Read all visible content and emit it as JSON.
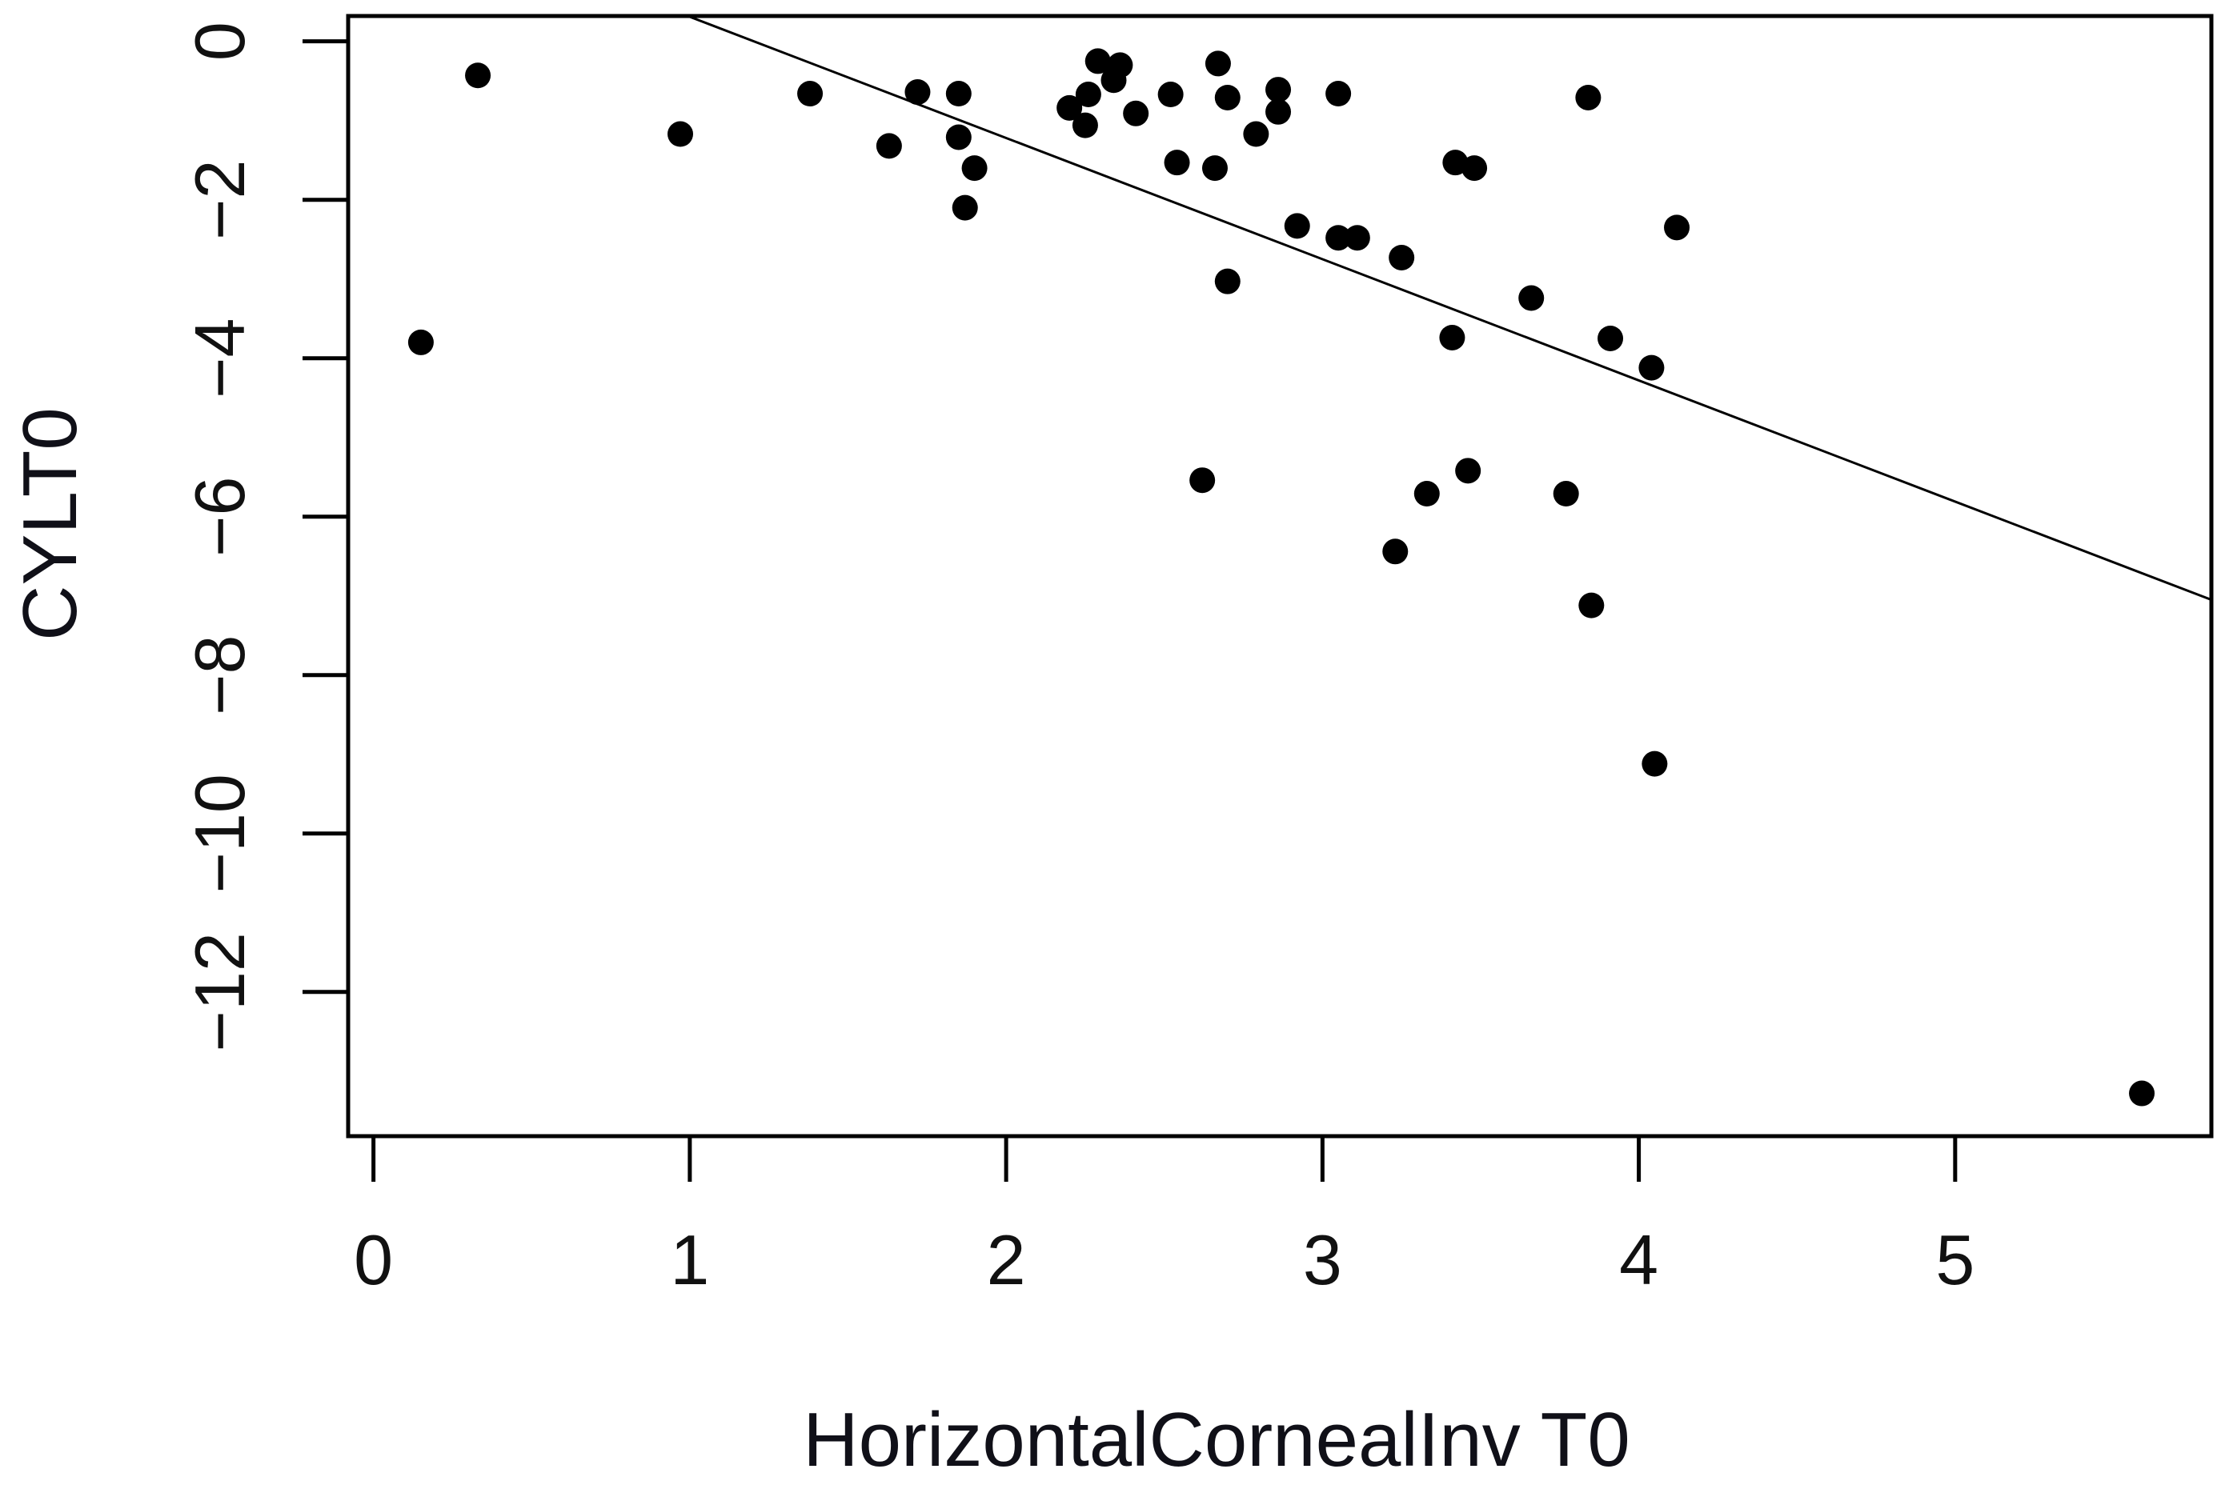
{
  "chart_data": {
    "type": "scatter",
    "title": "",
    "xlabel": "HorizontalCornealInv T0",
    "ylabel": "CYLT0",
    "x_ticks": [
      "0",
      "1",
      "2",
      "3",
      "4",
      "5"
    ],
    "x_tick_values": [
      0,
      1,
      2,
      3,
      4,
      5
    ],
    "y_ticks": [
      "0",
      "−2",
      "−4",
      "−6",
      "−8",
      "−10",
      "−12"
    ],
    "y_tick_values": [
      0,
      -2,
      -4,
      -6,
      -8,
      -10,
      -12
    ],
    "xlim": [
      -0.08,
      5.81
    ],
    "ylim": [
      -13.82,
      0.32
    ],
    "grid": false,
    "legend": "none",
    "point_color": "#000000",
    "axis_color": "#000000",
    "trend_line": {
      "type": "linear",
      "slope": -1.53,
      "intercept": 1.84,
      "x_start": 0.995,
      "x_end": 5.81,
      "color": "#000000"
    },
    "points": [
      [
        0.15,
        -3.8
      ],
      [
        0.33,
        -0.43
      ],
      [
        0.97,
        -1.17
      ],
      [
        1.38,
        -0.66
      ],
      [
        1.63,
        -1.32
      ],
      [
        1.72,
        -0.64
      ],
      [
        1.85,
        -0.66
      ],
      [
        1.85,
        -1.21
      ],
      [
        1.87,
        -2.1
      ],
      [
        1.9,
        -1.6
      ],
      [
        2.2,
        -0.84
      ],
      [
        2.25,
        -1.06
      ],
      [
        2.26,
        -0.67
      ],
      [
        2.29,
        -0.25
      ],
      [
        2.34,
        -0.49
      ],
      [
        2.36,
        -0.3
      ],
      [
        2.41,
        -0.91
      ],
      [
        2.52,
        -0.67
      ],
      [
        2.54,
        -1.53
      ],
      [
        2.62,
        -5.54
      ],
      [
        2.66,
        -1.6
      ],
      [
        2.67,
        -0.28
      ],
      [
        2.7,
        -0.71
      ],
      [
        2.7,
        -3.03
      ],
      [
        2.79,
        -1.17
      ],
      [
        2.86,
        -0.61
      ],
      [
        2.86,
        -0.89
      ],
      [
        2.92,
        -2.33
      ],
      [
        3.05,
        -0.66
      ],
      [
        3.05,
        -2.48
      ],
      [
        3.11,
        -2.48
      ],
      [
        3.23,
        -6.44
      ],
      [
        3.25,
        -2.73
      ],
      [
        3.33,
        -5.71
      ],
      [
        3.41,
        -3.74
      ],
      [
        3.42,
        -1.53
      ],
      [
        3.46,
        -5.42
      ],
      [
        3.48,
        -1.6
      ],
      [
        3.66,
        -3.24
      ],
      [
        3.77,
        -5.71
      ],
      [
        3.84,
        -0.71
      ],
      [
        3.85,
        -7.12
      ],
      [
        3.91,
        -3.75
      ],
      [
        4.04,
        -4.12
      ],
      [
        4.05,
        -9.12
      ],
      [
        4.12,
        -2.35
      ],
      [
        5.59,
        -13.28
      ]
    ]
  }
}
